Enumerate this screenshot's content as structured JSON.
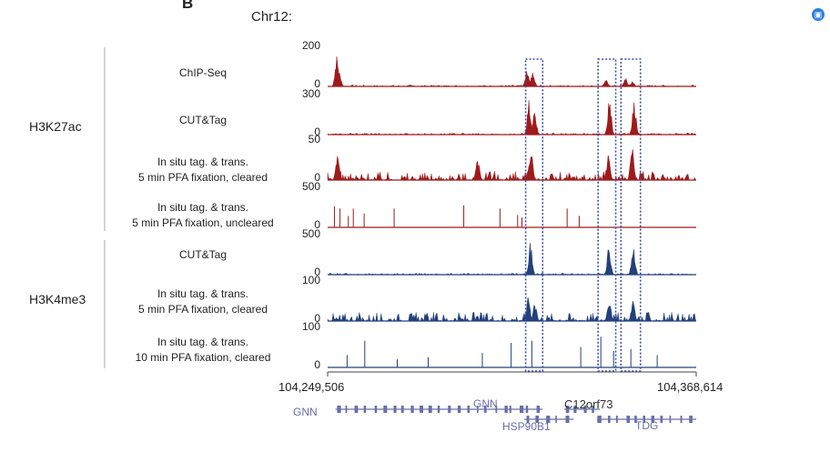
{
  "panel_letter": "B",
  "chromosome": "Chr12:",
  "groups": [
    {
      "label": "H3K27ac"
    },
    {
      "label": "H3K4me3"
    }
  ],
  "coords": {
    "start": "104,249,506",
    "end": "104,368,614"
  },
  "colors": {
    "h3k27ac": "#9e1b1b",
    "h3k4me3": "#23407a",
    "highlight": "#3a4fa8",
    "gene": "#6a6fa8"
  },
  "chart_data": {
    "type": "area",
    "x_range": [
      104249506,
      104368614
    ],
    "tracks": [
      {
        "name": "ChIP-Seq",
        "lines": [
          "ChIP-Seq"
        ],
        "group": "H3K27ac",
        "ylim": [
          0,
          200
        ],
        "ymax_label": "200",
        "ymin_label": "0",
        "peaks": [
          [
            104252500,
            150
          ],
          [
            104253200,
            75
          ],
          [
            104314000,
            90
          ],
          [
            104315800,
            70
          ],
          [
            104339500,
            35
          ],
          [
            104345800,
            40
          ],
          [
            104348000,
            25
          ]
        ]
      },
      {
        "name": "CUT&Tag",
        "lines": [
          "CUT&Tag"
        ],
        "group": "H3K27ac",
        "ylim": [
          0,
          300
        ],
        "ymax_label": "300",
        "ymin_label": "0",
        "peaks": [
          [
            104314600,
            260
          ],
          [
            104316400,
            190
          ],
          [
            104340600,
            270
          ],
          [
            104348600,
            250
          ]
        ]
      },
      {
        "name": "In situ tag. & trans. 5 min PFA fixation, cleared",
        "lines": [
          "In situ tag. & trans.",
          "5 min PFA fixation, cleared"
        ],
        "group": "H3K27ac",
        "ylim": [
          0,
          50
        ],
        "ymax_label": "50",
        "ymin_label": "0",
        "peaks": [
          [
            104252700,
            30
          ],
          [
            104298000,
            28
          ],
          [
            104315200,
            42
          ],
          [
            104340200,
            32
          ],
          [
            104347900,
            40
          ]
        ]
      },
      {
        "name": "In situ tag. & trans. 5 min PFA fixation, uncleared",
        "lines": [
          "In situ tag. & trans.",
          "5 min PFA fixation, uncleared"
        ],
        "group": "H3K27ac",
        "ylim": [
          0,
          500
        ],
        "ymax_label": "500",
        "ymin_label": "0",
        "spikes": [
          [
            104251700,
            260
          ],
          [
            104253500,
            230
          ],
          [
            104256200,
            140
          ],
          [
            104257800,
            230
          ],
          [
            104261300,
            170
          ],
          [
            104271000,
            230
          ],
          [
            104293500,
            270
          ],
          [
            104305200,
            230
          ],
          [
            104310900,
            150
          ],
          [
            104312300,
            120
          ],
          [
            104326900,
            230
          ],
          [
            104330800,
            140
          ]
        ]
      },
      {
        "name": "CUT&Tag",
        "lines": [
          "CUT&Tag"
        ],
        "group": "H3K4me3",
        "ylim": [
          0,
          500
        ],
        "ymax_label": "500",
        "ymin_label": "0",
        "peaks": [
          [
            104315000,
            400
          ],
          [
            104340400,
            370
          ],
          [
            104348300,
            380
          ]
        ]
      },
      {
        "name": "In situ tag. & trans. 5 min PFA fixation, cleared",
        "lines": [
          "In situ tag. & trans.",
          "5 min PFA fixation, cleared"
        ],
        "group": "H3K4me3",
        "ylim": [
          0,
          100
        ],
        "ymax_label": "100",
        "ymin_label": "0",
        "peaks": [
          [
            104314300,
            60
          ],
          [
            104316500,
            45
          ],
          [
            104340500,
            55
          ],
          [
            104348200,
            52
          ]
        ]
      },
      {
        "name": "In situ tag. & trans. 10 min PFA fixation, cleared",
        "lines": [
          "In situ tag. & trans.",
          "10 min PFA fixation, cleared"
        ],
        "group": "H3K4me3",
        "ylim": [
          0,
          100
        ],
        "ymax_label": "100",
        "ymin_label": "0",
        "spikes": [
          [
            104255800,
            30
          ],
          [
            104261500,
            65
          ],
          [
            104272000,
            20
          ],
          [
            104282000,
            25
          ],
          [
            104299500,
            35
          ],
          [
            104308800,
            60
          ],
          [
            104315500,
            65
          ],
          [
            104331300,
            50
          ],
          [
            104337800,
            75
          ],
          [
            104341900,
            40
          ],
          [
            104347500,
            45
          ],
          [
            104356000,
            30
          ]
        ]
      }
    ],
    "highlights": [
      [
        104313500,
        104319000
      ],
      [
        104336900,
        104342600
      ],
      [
        104344300,
        104350600
      ]
    ],
    "genes": [
      {
        "name": "GNN",
        "start": 104252000,
        "end": 104309000,
        "row": 0
      },
      {
        "name": "GNN",
        "start": 104308000,
        "end": 104319000,
        "row": 0
      },
      {
        "name": "HSP90B1",
        "start": 104313000,
        "end": 104329000,
        "row": 1
      },
      {
        "name": "C12orf73",
        "start": 104326000,
        "end": 104337500,
        "row": 0
      },
      {
        "name": "TDG",
        "start": 104336500,
        "end": 104368614,
        "row": 1
      }
    ]
  }
}
